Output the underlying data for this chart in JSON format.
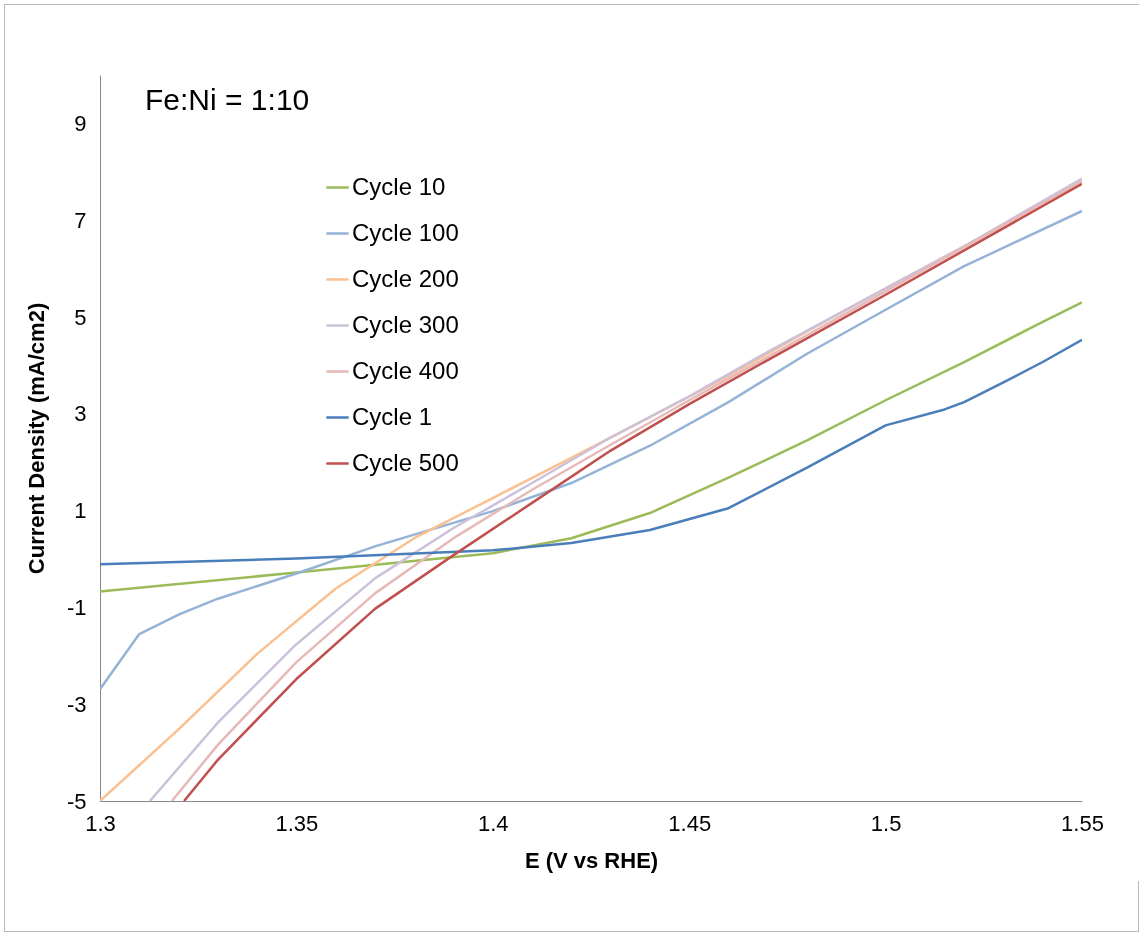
{
  "chart_data": {
    "type": "line",
    "xlabel": "E (V vs RHE)",
    "ylabel": "Current Density (mA/cm2)",
    "annotations": [
      "Fe:Ni = 1:10"
    ],
    "xlim": [
      1.3,
      1.55
    ],
    "xticks": [
      1.3,
      1.35,
      1.4,
      1.45,
      1.5,
      1.55
    ],
    "ylim": [
      -5,
      10
    ],
    "yticks": [
      -5,
      -3,
      -1,
      1,
      3,
      5,
      7,
      9
    ],
    "grid": false,
    "legend": "top left",
    "series": [
      {
        "name": "Cycle 10",
        "color": "#9bbb59",
        "x": [
          1.3,
          1.35,
          1.4,
          1.42,
          1.44,
          1.46,
          1.48,
          1.5,
          1.52,
          1.54,
          1.55
        ],
        "values": [
          -0.67,
          -0.28,
          0.12,
          0.43,
          0.95,
          1.68,
          2.45,
          3.28,
          4.07,
          4.9,
          5.3
        ]
      },
      {
        "name": "Cycle 100",
        "color": "#95b3d7",
        "x": [
          1.3,
          1.31,
          1.32,
          1.33,
          1.35,
          1.37,
          1.4,
          1.42,
          1.44,
          1.46,
          1.48,
          1.5,
          1.52,
          1.55
        ],
        "values": [
          -2.69,
          -1.55,
          -1.15,
          -0.82,
          -0.3,
          0.26,
          0.99,
          1.57,
          2.34,
          3.24,
          4.24,
          5.15,
          6.05,
          7.19
        ]
      },
      {
        "name": "Cycle 200",
        "color": "#fac090",
        "x": [
          1.3,
          1.32,
          1.34,
          1.36,
          1.38,
          1.4,
          1.42,
          1.44,
          1.46,
          1.48,
          1.5,
          1.52,
          1.55
        ],
        "values": [
          -5,
          -3.52,
          -1.96,
          -0.61,
          0.43,
          1.26,
          2.09,
          2.93,
          3.78,
          4.7,
          5.59,
          6.46,
          7.81
        ]
      },
      {
        "name": "Cycle 300",
        "color": "#ccc1da",
        "x": [
          1.3127,
          1.33,
          1.35,
          1.37,
          1.39,
          1.41,
          1.43,
          1.45,
          1.47,
          1.5,
          1.52,
          1.55
        ],
        "values": [
          -5,
          -3.38,
          -1.76,
          -0.4,
          0.64,
          1.57,
          2.51,
          3.36,
          4.28,
          5.59,
          6.46,
          7.86
        ]
      },
      {
        "name": "Cycle 400",
        "color": "#e6b9b8",
        "x": [
          1.3183,
          1.33,
          1.35,
          1.37,
          1.39,
          1.41,
          1.43,
          1.45,
          1.47,
          1.5,
          1.55
        ],
        "values": [
          -5,
          -3.84,
          -2.13,
          -0.71,
          0.43,
          1.43,
          2.36,
          3.28,
          4.17,
          5.53,
          7.81
        ]
      },
      {
        "name": "Cycle 1",
        "color": "#4a7ebb",
        "x": [
          1.3,
          1.35,
          1.4,
          1.42,
          1.44,
          1.46,
          1.48,
          1.5,
          1.515,
          1.52,
          1.53,
          1.54,
          1.55
        ],
        "values": [
          -0.11,
          0.01,
          0.18,
          0.33,
          0.6,
          1.05,
          1.89,
          2.76,
          3.09,
          3.24,
          3.65,
          4.07,
          4.53
        ]
      },
      {
        "name": "Cycle 500",
        "color": "#c0504d",
        "x": [
          1.3214,
          1.33,
          1.35,
          1.37,
          1.39,
          1.41,
          1.43,
          1.45,
          1.47,
          1.5,
          1.55
        ],
        "values": [
          -5,
          -4.15,
          -2.48,
          -1.03,
          0.08,
          1.16,
          2.24,
          3.2,
          4.11,
          5.46,
          7.75
        ]
      }
    ]
  }
}
